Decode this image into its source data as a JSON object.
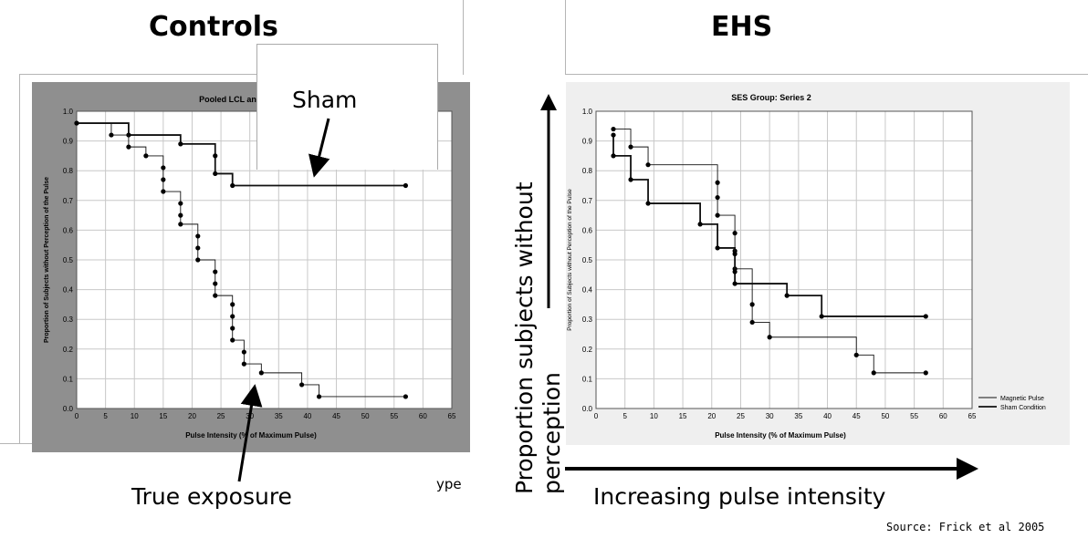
{
  "titles": {
    "left": "Controls",
    "right": "EHS"
  },
  "annotations": {
    "sham": "Sham",
    "true_exposure": "True exposure",
    "cut_text": "ype",
    "y_axis_arrow_label": "Proportion subjects without perception",
    "x_axis_arrow_label": "Increasing pulse intensity",
    "source": "Source: Frick et al 2005"
  },
  "chart_data": [
    {
      "type": "line",
      "step": true,
      "title": "Pooled LCL and HC",
      "xlabel": "Pulse Intensity (% of Maximum Pulse)",
      "ylabel": "Proportion of Subjects without Perception of the Pulse",
      "xlim": [
        0,
        65
      ],
      "ylim": [
        0,
        1.0
      ],
      "xticks": [
        "0",
        "5",
        "10",
        "15",
        "20",
        "25",
        "30",
        "35",
        "40",
        "45",
        "50",
        "55",
        "60",
        "65"
      ],
      "yticks": [
        "0.0",
        "0.1",
        "0.2",
        "0.3",
        "0.4",
        "0.5",
        "0.6",
        "0.7",
        "0.8",
        "0.9",
        "1.0"
      ],
      "grid": true,
      "background": "#8f8f8f",
      "series": [
        {
          "style": "thick",
          "x": [
            0,
            9,
            18,
            24,
            24,
            27,
            57
          ],
          "y": [
            0.96,
            0.92,
            0.89,
            0.85,
            0.79,
            0.75,
            0.75
          ]
        },
        {
          "style": "thin",
          "x": [
            0,
            6,
            9,
            12,
            15,
            15,
            15,
            18,
            18,
            18,
            21,
            21,
            21,
            24,
            24,
            24,
            27,
            27,
            27,
            27,
            29,
            29,
            32,
            39,
            42,
            57
          ],
          "y": [
            0.96,
            0.92,
            0.88,
            0.85,
            0.81,
            0.77,
            0.73,
            0.69,
            0.65,
            0.62,
            0.58,
            0.54,
            0.5,
            0.46,
            0.42,
            0.38,
            0.35,
            0.31,
            0.27,
            0.23,
            0.19,
            0.15,
            0.12,
            0.08,
            0.04,
            0.04
          ]
        }
      ]
    },
    {
      "type": "line",
      "step": true,
      "title": "SES Group: Series 2",
      "xlabel": "Pulse Intensity (% of Maximum Pulse)",
      "ylabel": "Proportion of Subjects without Perception of the Pulse",
      "xlim": [
        0,
        65
      ],
      "ylim": [
        0,
        1.0
      ],
      "xticks": [
        "0",
        "5",
        "10",
        "15",
        "20",
        "25",
        "30",
        "35",
        "40",
        "45",
        "50",
        "55",
        "60",
        "65"
      ],
      "yticks": [
        "0.0",
        "0.1",
        "0.2",
        "0.3",
        "0.4",
        "0.5",
        "0.6",
        "0.7",
        "0.8",
        "0.9",
        "1.0"
      ],
      "grid": true,
      "legend_position": "right",
      "background": "#efefef",
      "series": [
        {
          "name": "Magnetic Pulse",
          "style": "thin",
          "x": [
            3,
            6,
            9,
            21,
            21,
            21,
            24,
            24,
            24,
            27,
            27,
            30,
            45,
            48,
            57
          ],
          "y": [
            0.94,
            0.88,
            0.82,
            0.76,
            0.71,
            0.65,
            0.59,
            0.53,
            0.47,
            0.35,
            0.29,
            0.24,
            0.18,
            0.12,
            0.12
          ]
        },
        {
          "name": "Sham Condition",
          "style": "thick",
          "x": [
            3,
            3,
            6,
            9,
            18,
            21,
            24,
            24,
            24,
            33,
            39,
            57
          ],
          "y": [
            0.92,
            0.85,
            0.77,
            0.69,
            0.62,
            0.54,
            0.52,
            0.46,
            0.42,
            0.38,
            0.31,
            0.31
          ]
        }
      ]
    }
  ]
}
